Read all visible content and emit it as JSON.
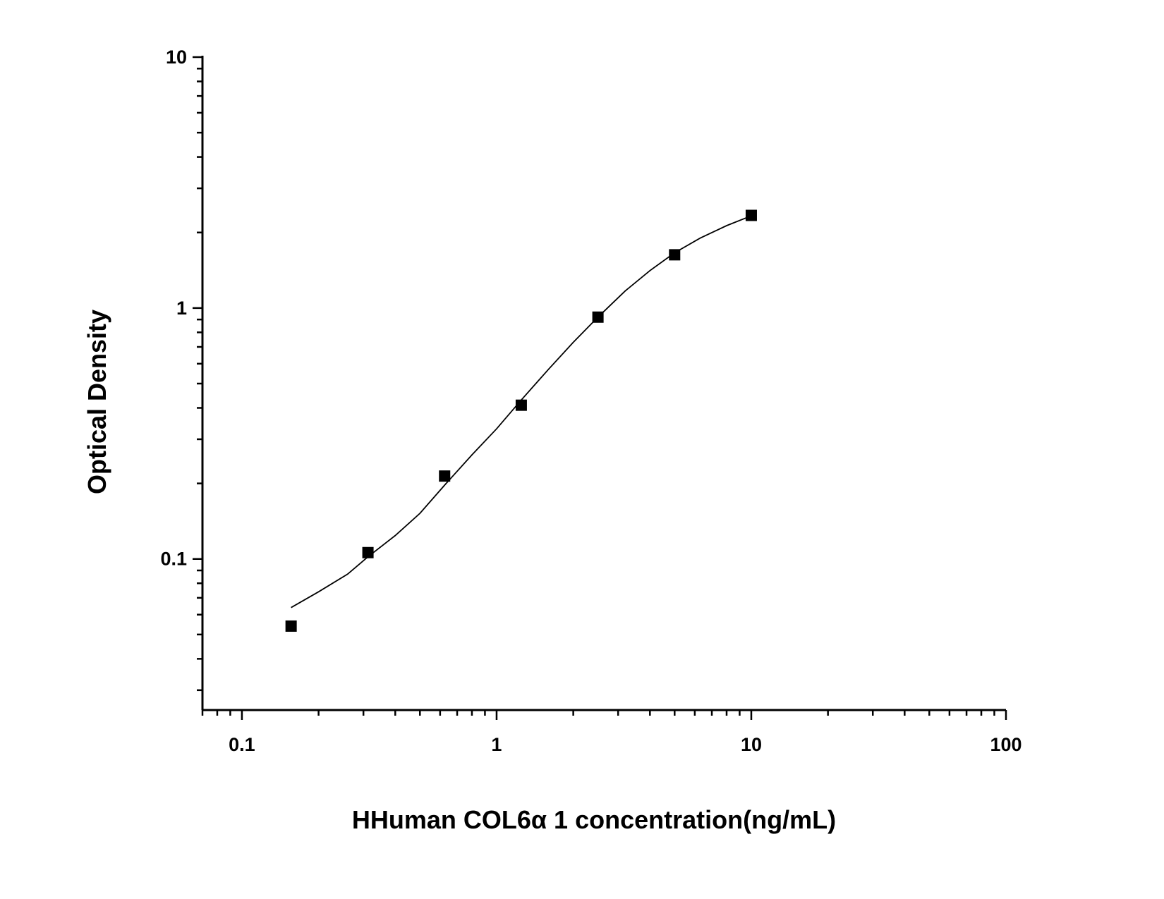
{
  "chart_data": {
    "type": "scatter",
    "xlabel": "HHuman COL6α 1 concentration(ng/mL)",
    "ylabel": "Optical Density",
    "x_scale": "log",
    "y_scale": "log",
    "xlim": [
      0.07,
      100
    ],
    "ylim": [
      0.025,
      10
    ],
    "x_ticks": [
      0.1,
      1,
      10,
      100
    ],
    "x_tick_labels": [
      "0.1",
      "1",
      "10",
      "100"
    ],
    "y_ticks": [
      0.1,
      1,
      10
    ],
    "y_tick_labels": [
      "0.1",
      "1",
      "10"
    ],
    "grid": false,
    "legend": "none",
    "series": [
      {
        "marker": "square",
        "color": "#000000",
        "x": [
          0.156,
          0.3125,
          0.625,
          1.25,
          2.5,
          5,
          10
        ],
        "y": [
          0.054,
          0.106,
          0.214,
          0.41,
          0.92,
          1.63,
          2.34
        ]
      }
    ],
    "fit_curve": {
      "color": "#000000",
      "x": [
        0.156,
        0.2,
        0.26,
        0.3125,
        0.4,
        0.5,
        0.625,
        0.8,
        1.0,
        1.25,
        1.6,
        2.0,
        2.5,
        3.2,
        4.0,
        5.0,
        6.3,
        8.0,
        10.0
      ],
      "y": [
        0.064,
        0.074,
        0.087,
        0.102,
        0.124,
        0.152,
        0.197,
        0.26,
        0.33,
        0.43,
        0.57,
        0.73,
        0.92,
        1.17,
        1.41,
        1.66,
        1.9,
        2.13,
        2.33
      ]
    }
  }
}
